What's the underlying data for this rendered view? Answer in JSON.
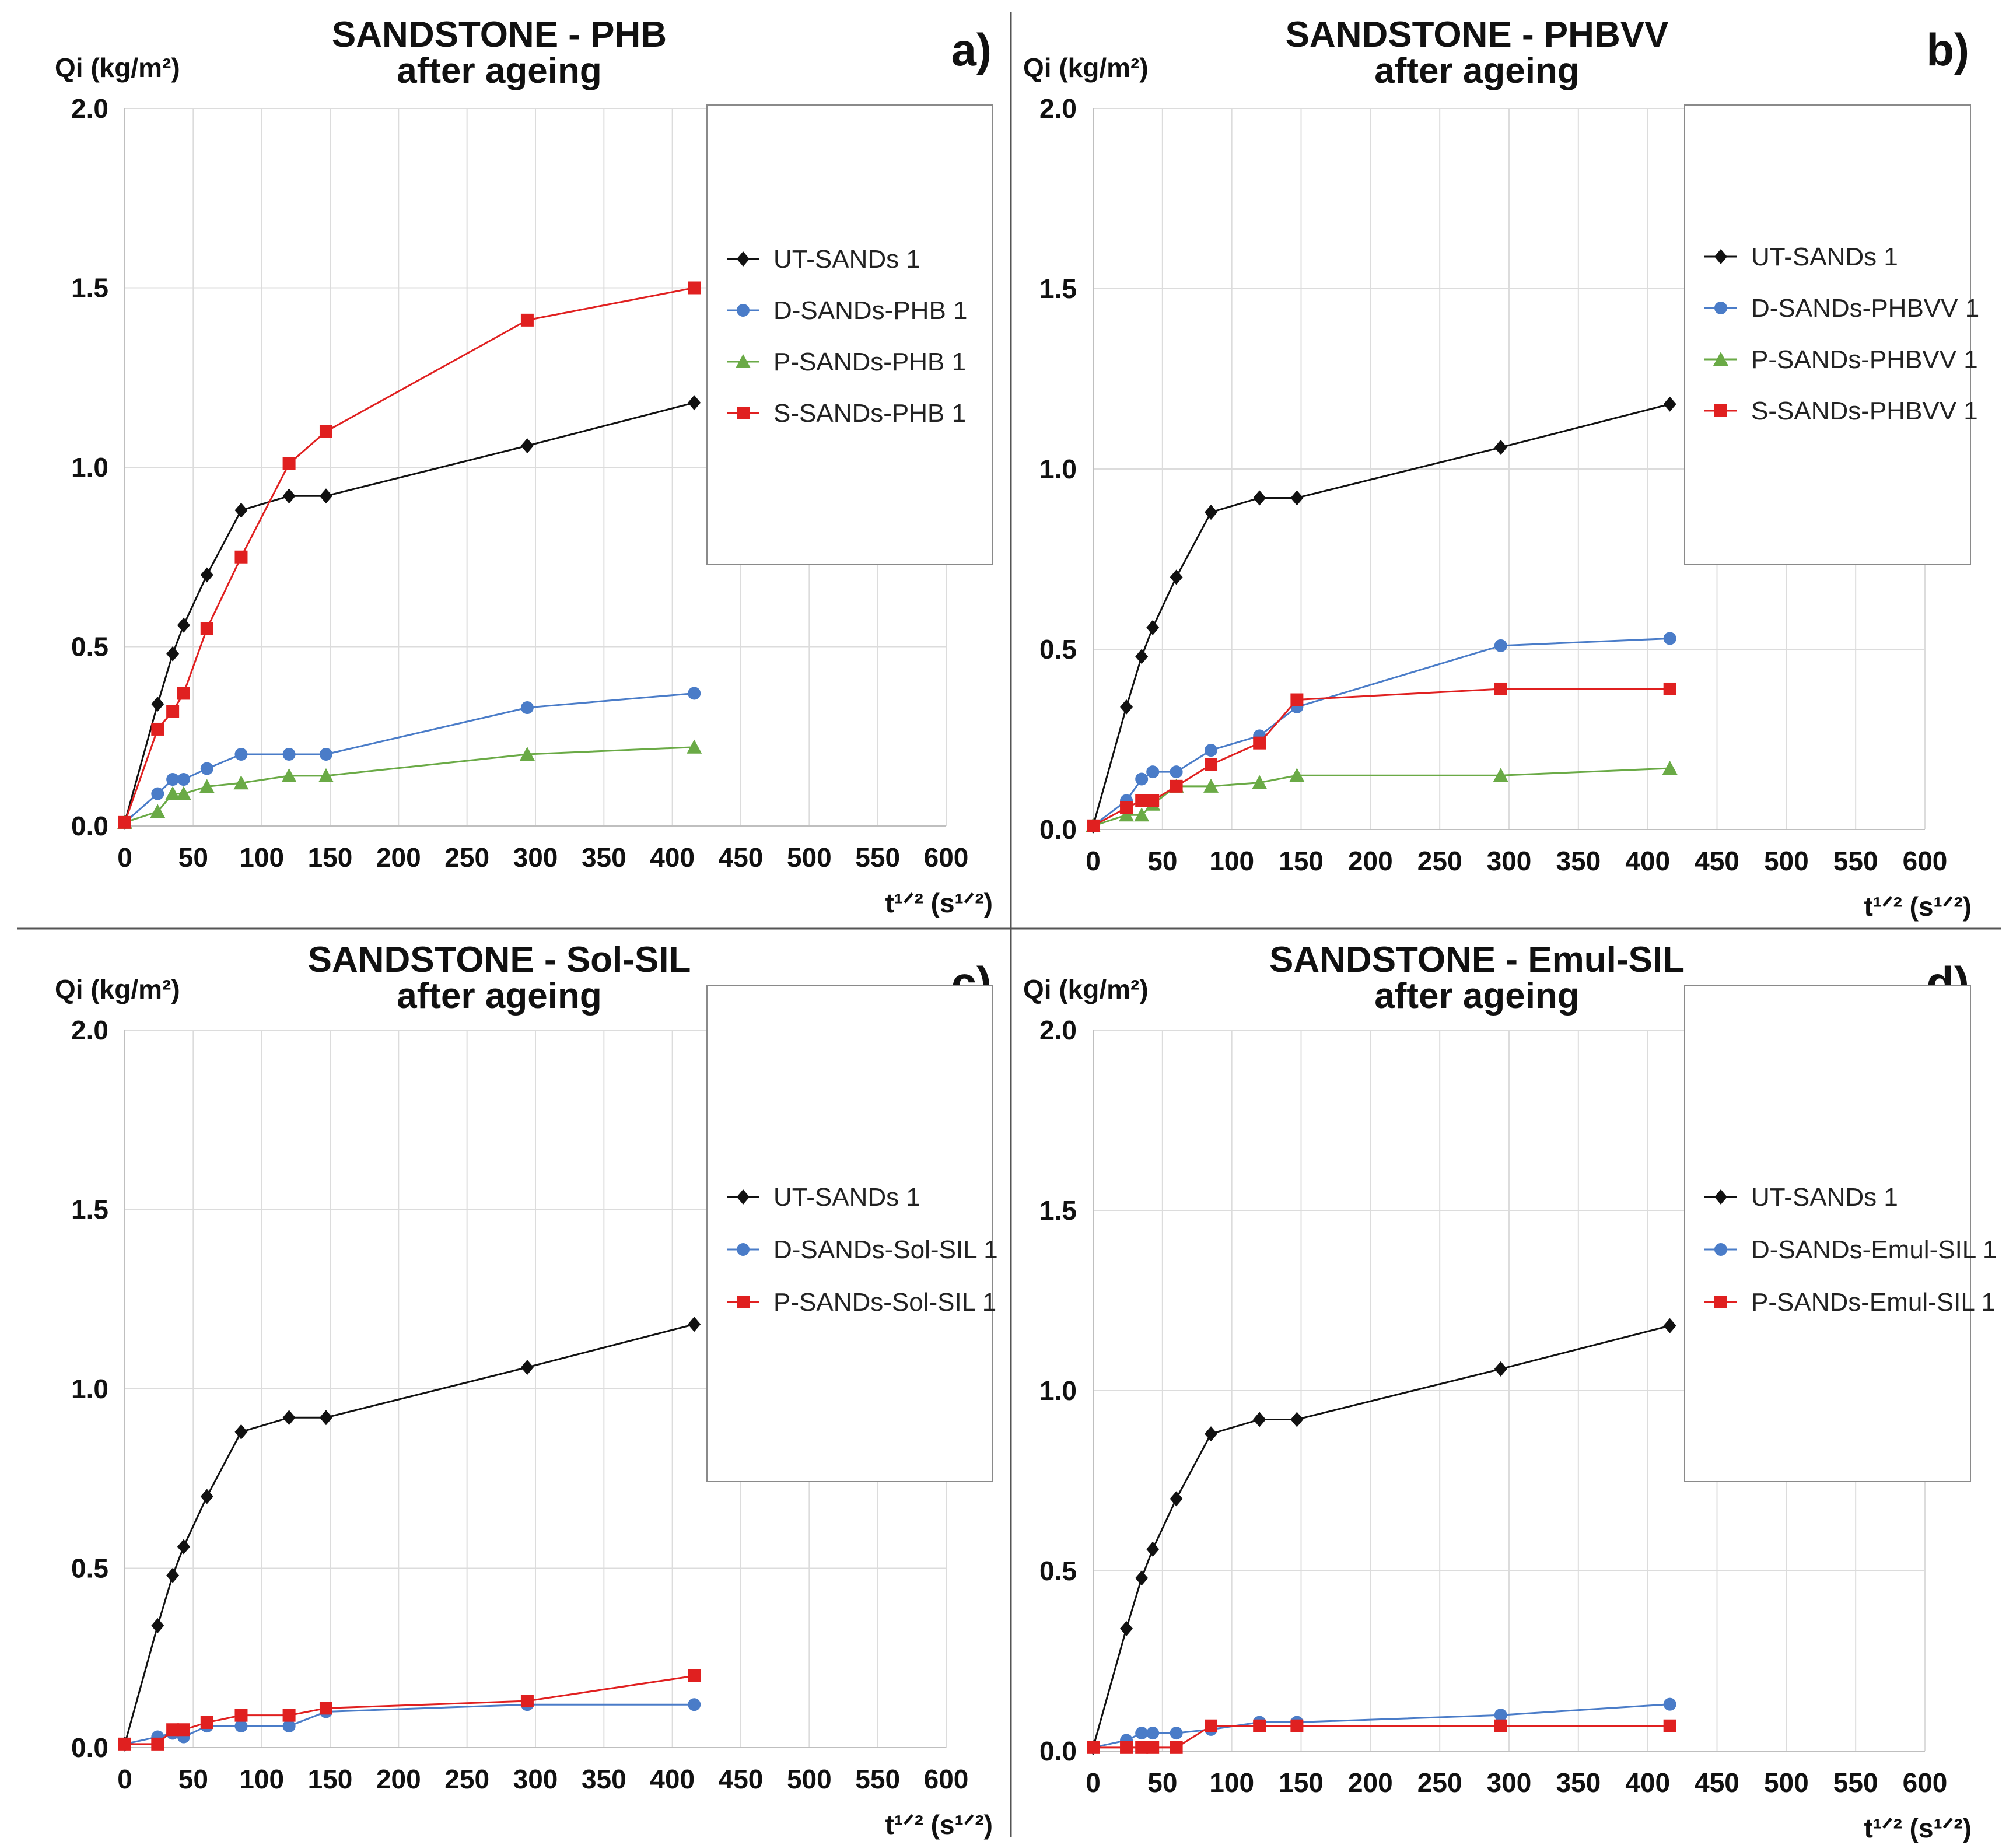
{
  "chart_data": [
    {
      "panel": "a)",
      "type": "line",
      "title_line1": "SANDSTONE - PHB",
      "title_line2": "after ageing",
      "ylabel": "Qi (kg/m²)",
      "xlabel": "t¹ᐟ² (s¹ᐟ²)",
      "xlim": [
        0,
        600
      ],
      "ylim": [
        0,
        2.0
      ],
      "xticks": [
        0,
        50,
        100,
        150,
        200,
        250,
        300,
        350,
        400,
        450,
        500,
        550,
        600
      ],
      "yticks": [
        "0.0",
        "0.5",
        "1.0",
        "1.5",
        "2.0"
      ],
      "legend_position": "top-right",
      "series": [
        {
          "name": "UT-SANDs 1",
          "color": "#111111",
          "marker": "diamond",
          "x": [
            0,
            24,
            35,
            43,
            60,
            85,
            120,
            147,
            294,
            416
          ],
          "y": [
            0.01,
            0.34,
            0.48,
            0.56,
            0.7,
            0.88,
            0.92,
            0.92,
            1.06,
            1.18
          ]
        },
        {
          "name": "D-SANDs-PHB 1",
          "color": "#4a7cc8",
          "marker": "circle",
          "x": [
            0,
            24,
            35,
            43,
            60,
            85,
            120,
            147,
            294,
            416
          ],
          "y": [
            0.01,
            0.09,
            0.13,
            0.13,
            0.16,
            0.2,
            0.2,
            0.2,
            0.33,
            0.37
          ]
        },
        {
          "name": "P-SANDs-PHB 1",
          "color": "#6aaa46",
          "marker": "triangle",
          "x": [
            0,
            24,
            35,
            43,
            60,
            85,
            120,
            147,
            294,
            416
          ],
          "y": [
            0.01,
            0.04,
            0.09,
            0.09,
            0.11,
            0.12,
            0.14,
            0.14,
            0.2,
            0.22
          ]
        },
        {
          "name": "S-SANDs-PHB 1",
          "color": "#e02020",
          "marker": "square",
          "x": [
            0,
            24,
            35,
            43,
            60,
            85,
            120,
            147,
            294,
            416
          ],
          "y": [
            0.01,
            0.27,
            0.32,
            0.37,
            0.55,
            0.75,
            1.01,
            1.1,
            1.41,
            1.5
          ]
        }
      ]
    },
    {
      "panel": "b)",
      "type": "line",
      "title_line1": "SANDSTONE - PHBVV",
      "title_line2": "after ageing",
      "ylabel": "Qi (kg/m²)",
      "xlabel": "t¹ᐟ² (s¹ᐟ²)",
      "xlim": [
        0,
        600
      ],
      "ylim": [
        0,
        2.0
      ],
      "xticks": [
        0,
        50,
        100,
        150,
        200,
        250,
        300,
        350,
        400,
        450,
        500,
        550,
        600
      ],
      "yticks": [
        "0.0",
        "0.5",
        "1.0",
        "1.5",
        "2.0"
      ],
      "legend_position": "top-right",
      "series": [
        {
          "name": "UT-SANDs 1",
          "color": "#111111",
          "marker": "diamond",
          "x": [
            0,
            24,
            35,
            43,
            60,
            85,
            120,
            147,
            294,
            416
          ],
          "y": [
            0.01,
            0.34,
            0.48,
            0.56,
            0.7,
            0.88,
            0.92,
            0.92,
            1.06,
            1.18
          ]
        },
        {
          "name": "D-SANDs-PHBVV 1",
          "color": "#4a7cc8",
          "marker": "circle",
          "x": [
            0,
            24,
            35,
            43,
            60,
            85,
            120,
            147,
            294,
            416
          ],
          "y": [
            0.01,
            0.08,
            0.14,
            0.16,
            0.16,
            0.22,
            0.26,
            0.34,
            0.51,
            0.53
          ]
        },
        {
          "name": "P-SANDs-PHBVV 1",
          "color": "#6aaa46",
          "marker": "triangle",
          "x": [
            0,
            24,
            35,
            43,
            60,
            85,
            120,
            147,
            294,
            416
          ],
          "y": [
            0.01,
            0.04,
            0.04,
            0.07,
            0.12,
            0.12,
            0.13,
            0.15,
            0.15,
            0.17
          ]
        },
        {
          "name": "S-SANDs-PHBVV 1",
          "color": "#e02020",
          "marker": "square",
          "x": [
            0,
            24,
            35,
            43,
            60,
            85,
            120,
            147,
            294,
            416
          ],
          "y": [
            0.01,
            0.06,
            0.08,
            0.08,
            0.12,
            0.18,
            0.24,
            0.36,
            0.39,
            0.39
          ]
        }
      ]
    },
    {
      "panel": "c)",
      "type": "line",
      "title_line1": "SANDSTONE - Sol-SIL",
      "title_line2": "after ageing",
      "ylabel": "Qi (kg/m²)",
      "xlabel": "t¹ᐟ² (s¹ᐟ²)",
      "xlim": [
        0,
        600
      ],
      "ylim": [
        0,
        2.0
      ],
      "xticks": [
        0,
        50,
        100,
        150,
        200,
        250,
        300,
        350,
        400,
        450,
        500,
        550,
        600
      ],
      "yticks": [
        "0.0",
        "0.5",
        "1.0",
        "1.5",
        "2.0"
      ],
      "legend_position": "top-right",
      "series": [
        {
          "name": "UT-SANDs 1",
          "color": "#111111",
          "marker": "diamond",
          "x": [
            0,
            24,
            35,
            43,
            60,
            85,
            120,
            147,
            294,
            416
          ],
          "y": [
            0.01,
            0.34,
            0.48,
            0.56,
            0.7,
            0.88,
            0.92,
            0.92,
            1.06,
            1.18
          ]
        },
        {
          "name": "D-SANDs-Sol-SIL 1",
          "color": "#4a7cc8",
          "marker": "circle",
          "x": [
            0,
            24,
            35,
            43,
            60,
            85,
            120,
            147,
            294,
            416
          ],
          "y": [
            0.01,
            0.03,
            0.04,
            0.03,
            0.06,
            0.06,
            0.06,
            0.1,
            0.12,
            0.12
          ]
        },
        {
          "name": "P-SANDs-Sol-SIL 1",
          "color": "#e02020",
          "marker": "square",
          "x": [
            0,
            24,
            35,
            43,
            60,
            85,
            120,
            147,
            294,
            416
          ],
          "y": [
            0.01,
            0.01,
            0.05,
            0.05,
            0.07,
            0.09,
            0.09,
            0.11,
            0.13,
            0.2
          ]
        }
      ]
    },
    {
      "panel": "d)",
      "type": "line",
      "title_line1": "SANDSTONE - Emul-SIL",
      "title_line2": "after ageing",
      "ylabel": "Qi (kg/m²)",
      "xlabel": "t¹ᐟ² (s¹ᐟ²)",
      "xlim": [
        0,
        600
      ],
      "ylim": [
        0,
        2.0
      ],
      "xticks": [
        0,
        50,
        100,
        150,
        200,
        250,
        300,
        350,
        400,
        450,
        500,
        550,
        600
      ],
      "yticks": [
        "0.0",
        "0.5",
        "1.0",
        "1.5",
        "2.0"
      ],
      "legend_position": "top-right",
      "series": [
        {
          "name": "UT-SANDs 1",
          "color": "#111111",
          "marker": "diamond",
          "x": [
            0,
            24,
            35,
            43,
            60,
            85,
            120,
            147,
            294,
            416
          ],
          "y": [
            0.01,
            0.34,
            0.48,
            0.56,
            0.7,
            0.88,
            0.92,
            0.92,
            1.06,
            1.18
          ]
        },
        {
          "name": "D-SANDs-Emul-SIL 1",
          "color": "#4a7cc8",
          "marker": "circle",
          "x": [
            0,
            24,
            35,
            43,
            60,
            85,
            120,
            147,
            294,
            416
          ],
          "y": [
            0.01,
            0.03,
            0.05,
            0.05,
            0.05,
            0.06,
            0.08,
            0.08,
            0.1,
            0.13
          ]
        },
        {
          "name": "P-SANDs-Emul-SIL 1",
          "color": "#e02020",
          "marker": "square",
          "x": [
            0,
            24,
            35,
            43,
            60,
            85,
            120,
            147,
            294,
            416
          ],
          "y": [
            0.01,
            0.01,
            0.01,
            0.01,
            0.01,
            0.07,
            0.07,
            0.07,
            0.07,
            0.07
          ]
        }
      ]
    }
  ]
}
